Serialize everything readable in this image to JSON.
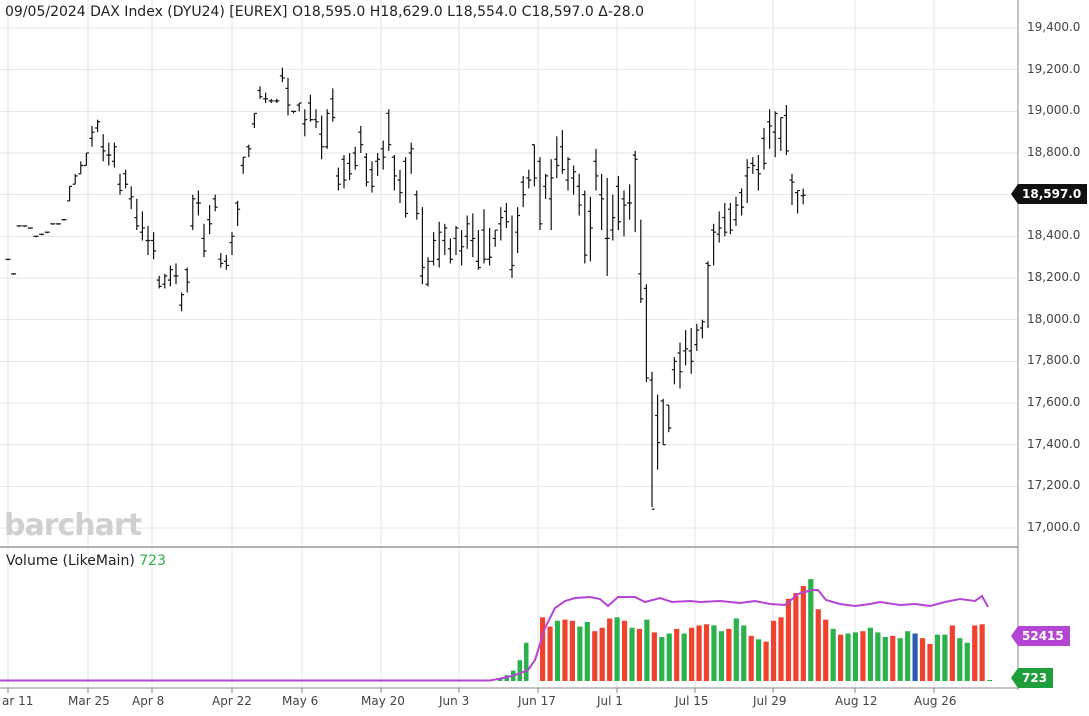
{
  "header": {
    "date": "09/05/2024",
    "instrument": "DAX Index (DYU24) [EUREX]",
    "ohlc": "O18,595.0 H18,629.0 L18,554.0 C18,597.0 Δ-28.0"
  },
  "watermark": "barchart",
  "volume_panel": {
    "title": "Volume  (LikeMain)",
    "current": "723"
  },
  "badges": {
    "last_price": "18,597.0",
    "volume_ma": "52415",
    "volume": "723"
  },
  "colors": {
    "up_volume": "#2bb24c",
    "down_volume": "#f0432f",
    "neutral_volume": "#2c5db3",
    "volume_ma": "#b546d4",
    "price_bar": "#111111"
  },
  "chart_data": [
    {
      "type": "ohlc",
      "y_ticks": [
        "19,400.0",
        "19,200.0",
        "19,000.0",
        "18,800.0",
        "18,600.0",
        "18,400.0",
        "18,200.0",
        "18,000.0",
        "17,800.0",
        "17,600.0",
        "17,400.0",
        "17,200.0",
        "17,000.0"
      ],
      "x_ticks": [
        "ar 11",
        "Mar 25",
        "Apr 8",
        "Apr 22",
        "May 6",
        "May 20",
        "Jun 3",
        "Jun 17",
        "Jul 1",
        "Jul 15",
        "Jul 29",
        "Aug 12",
        "Aug 26"
      ],
      "ylim": [
        16930,
        19450
      ],
      "grid": true,
      "bars": [
        [
          18290,
          18290,
          18290,
          18290
        ],
        [
          18220,
          18220,
          18220,
          18220
        ],
        [
          18450,
          18450,
          18450,
          18450
        ],
        [
          18450,
          18450,
          18450,
          18450
        ],
        [
          18440,
          18440,
          18440,
          18440
        ],
        [
          18400,
          18400,
          18400,
          18400
        ],
        [
          18410,
          18410,
          18410,
          18410
        ],
        [
          18420,
          18420,
          18420,
          18420
        ],
        [
          18460,
          18460,
          18460,
          18460
        ],
        [
          18460,
          18460,
          18460,
          18460
        ],
        [
          18480,
          18480,
          18480,
          18480
        ],
        [
          18570,
          18640,
          18570,
          18640
        ],
        [
          18650,
          18700,
          18650,
          18690
        ],
        [
          18700,
          18760,
          18700,
          18740
        ],
        [
          18740,
          18800,
          18740,
          18800
        ],
        [
          18870,
          18930,
          18830,
          18900
        ],
        [
          18920,
          18960,
          18900,
          18950
        ],
        [
          18830,
          18890,
          18760,
          18810
        ],
        [
          18790,
          18850,
          18740,
          18790
        ],
        [
          18760,
          18850,
          18730,
          18830
        ],
        [
          18650,
          18700,
          18600,
          18620
        ],
        [
          18700,
          18720,
          18630,
          18650
        ],
        [
          18580,
          18640,
          18530,
          18590
        ],
        [
          18490,
          18580,
          18430,
          18450
        ],
        [
          18420,
          18520,
          18380,
          18440
        ],
        [
          18380,
          18450,
          18310,
          18380
        ],
        [
          18380,
          18420,
          18290,
          18330
        ],
        [
          18190,
          18210,
          18150,
          18160
        ],
        [
          18170,
          18220,
          18150,
          18210
        ],
        [
          18190,
          18260,
          18160,
          18240
        ],
        [
          18210,
          18270,
          18170,
          18210
        ],
        [
          18070,
          18130,
          18040,
          18120
        ],
        [
          18240,
          18250,
          18130,
          18180
        ],
        [
          18450,
          18600,
          18430,
          18580
        ],
        [
          18560,
          18620,
          18500,
          18560
        ],
        [
          18390,
          18460,
          18300,
          18330
        ],
        [
          18480,
          18550,
          18410,
          18460
        ],
        [
          18580,
          18600,
          18520,
          18540
        ],
        [
          18290,
          18320,
          18250,
          18270
        ],
        [
          18280,
          18310,
          18240,
          18260
        ],
        [
          18370,
          18420,
          18310,
          18400
        ],
        [
          18560,
          18570,
          18450,
          18530
        ],
        [
          18740,
          18780,
          18700,
          18780
        ],
        [
          18830,
          18840,
          18780,
          18820
        ],
        [
          18940,
          18990,
          18920,
          18990
        ],
        [
          19100,
          19120,
          19060,
          19070
        ],
        [
          19060,
          19090,
          19040,
          19060
        ],
        [
          19050,
          19060,
          19040,
          19050
        ],
        [
          19050,
          19060,
          19040,
          19050
        ],
        [
          19170,
          19210,
          19140,
          19160
        ],
        [
          19110,
          19160,
          18980,
          19030
        ],
        [
          19000,
          19000,
          18990,
          19000
        ],
        [
          19030,
          19040,
          19000,
          19040
        ],
        [
          18940,
          19010,
          18880,
          18960
        ],
        [
          19040,
          19080,
          18950,
          18960
        ],
        [
          18960,
          19010,
          18920,
          18950
        ],
        [
          18890,
          18980,
          18770,
          18830
        ],
        [
          18830,
          19010,
          18820,
          18990
        ],
        [
          19060,
          19110,
          18950,
          18970
        ],
        [
          18690,
          18730,
          18620,
          18650
        ],
        [
          18770,
          18790,
          18630,
          18670
        ],
        [
          18750,
          18800,
          18670,
          18700
        ],
        [
          18800,
          18830,
          18720,
          18740
        ],
        [
          18900,
          18930,
          18800,
          18840
        ],
        [
          18780,
          18800,
          18640,
          18660
        ],
        [
          18720,
          18760,
          18610,
          18640
        ],
        [
          18760,
          18800,
          18690,
          18770
        ],
        [
          18820,
          18860,
          18720,
          18780
        ],
        [
          18990,
          19010,
          18810,
          18840
        ],
        [
          18780,
          18790,
          18620,
          18690
        ],
        [
          18670,
          18720,
          18560,
          18610
        ],
        [
          18760,
          18780,
          18490,
          18510
        ],
        [
          18800,
          18850,
          18700,
          18820
        ],
        [
          18600,
          18620,
          18480,
          18510
        ],
        [
          18210,
          18540,
          18170,
          18250
        ],
        [
          18170,
          18300,
          18160,
          18280
        ],
        [
          18280,
          18420,
          18260,
          18380
        ],
        [
          18290,
          18470,
          18250,
          18420
        ],
        [
          18380,
          18460,
          18310,
          18440
        ],
        [
          18340,
          18390,
          18270,
          18290
        ],
        [
          18390,
          18450,
          18310,
          18440
        ],
        [
          18330,
          18430,
          18260,
          18350
        ],
        [
          18400,
          18500,
          18340,
          18460
        ],
        [
          18380,
          18510,
          18300,
          18390
        ],
        [
          18280,
          18430,
          18240,
          18250
        ],
        [
          18430,
          18530,
          18270,
          18290
        ],
        [
          18290,
          18440,
          18260,
          18300
        ],
        [
          18390,
          18430,
          18350,
          18430
        ],
        [
          18460,
          18540,
          18380,
          18490
        ],
        [
          18520,
          18560,
          18440,
          18470
        ],
        [
          18240,
          18500,
          18200,
          18260
        ],
        [
          18420,
          18540,
          18320,
          18500
        ],
        [
          18660,
          18690,
          18540,
          18600
        ],
        [
          18680,
          18720,
          18630,
          18670
        ],
        [
          18840,
          18840,
          18640,
          18680
        ],
        [
          18760,
          18780,
          18430,
          18460
        ],
        [
          18640,
          18700,
          18580,
          18690
        ],
        [
          18580,
          18770,
          18430,
          18680
        ],
        [
          18770,
          18880,
          18680,
          18740
        ],
        [
          18830,
          18910,
          18700,
          18720
        ],
        [
          18670,
          18780,
          18620,
          18770
        ],
        [
          18680,
          18740,
          18600,
          18710
        ],
        [
          18640,
          18700,
          18500,
          18550
        ],
        [
          18600,
          18620,
          18270,
          18310
        ],
        [
          18520,
          18590,
          18280,
          18440
        ],
        [
          18760,
          18820,
          18620,
          18690
        ],
        [
          18600,
          18700,
          18430,
          18580
        ],
        [
          18390,
          18680,
          18210,
          18390
        ],
        [
          18430,
          18600,
          18380,
          18490
        ],
        [
          18640,
          18690,
          18430,
          18470
        ],
        [
          18580,
          18620,
          18400,
          18550
        ],
        [
          18560,
          18650,
          18480,
          18560
        ],
        [
          18790,
          18810,
          18420,
          18770
        ],
        [
          18220,
          18480,
          18080,
          18100
        ],
        [
          18150,
          18170,
          17700,
          17720
        ],
        [
          17710,
          17750,
          17100,
          17090
        ],
        [
          17540,
          17640,
          17280,
          17410
        ],
        [
          17610,
          17620,
          17400,
          17400
        ],
        [
          17590,
          17590,
          17460,
          17480
        ],
        [
          17760,
          17820,
          17690,
          17800
        ],
        [
          17840,
          17890,
          17670,
          17750
        ],
        [
          17850,
          17950,
          17780,
          17860
        ],
        [
          17850,
          17960,
          17740,
          17800
        ],
        [
          17880,
          17980,
          17850,
          17950
        ],
        [
          17960,
          18000,
          17910,
          17990
        ],
        [
          18270,
          18280,
          17960,
          18260
        ],
        [
          18430,
          18460,
          18260,
          18420
        ],
        [
          18410,
          18520,
          18370,
          18440
        ],
        [
          18490,
          18560,
          18400,
          18420
        ],
        [
          18530,
          18560,
          18410,
          18430
        ],
        [
          18480,
          18590,
          18450,
          18550
        ],
        [
          18610,
          18630,
          18500,
          18540
        ],
        [
          18690,
          18770,
          18560,
          18730
        ],
        [
          18750,
          18780,
          18700,
          18740
        ],
        [
          18720,
          18790,
          18620,
          18700
        ],
        [
          18870,
          18920,
          18720,
          18750
        ],
        [
          18950,
          19010,
          18820,
          18930
        ],
        [
          18900,
          19000,
          18780,
          18990
        ],
        [
          18870,
          18970,
          18810,
          18970
        ],
        [
          18980,
          19030,
          18790,
          18810
        ],
        [
          18670,
          18700,
          18550,
          18660
        ],
        [
          18610,
          18620,
          18510,
          18620
        ],
        [
          18595,
          18629,
          18554,
          18597
        ]
      ]
    },
    {
      "type": "bar",
      "title": "Volume (LikeMain)",
      "ylim": [
        0,
        95000
      ],
      "bars": [
        {
          "start": 117,
          "values": [
            2500,
            5000,
            9000,
            18000,
            33000
          ]
        },
        {
          "values": [
            55000,
            47000,
            52000,
            53000,
            52000,
            47000,
            51000,
            43000,
            46000,
            54000,
            55000,
            52000,
            46000,
            45000,
            53000,
            42000,
            38000,
            41000,
            45000,
            41000,
            46000,
            48000,
            49000,
            48000,
            43000,
            45000,
            54000,
            48000,
            39000,
            36000,
            34000,
            52000,
            55000,
            71000,
            76000,
            82000,
            88000,
            62000,
            53000,
            45000,
            40000,
            41000,
            42000,
            43000,
            46000,
            42000,
            38000,
            39000,
            37000,
            43000,
            41000,
            37000,
            32000,
            40000,
            40000,
            48000,
            37000,
            33000,
            48000,
            49000
          ]
        },
        {
          "end": "723"
        }
      ],
      "ma_values": "52415"
    }
  ]
}
